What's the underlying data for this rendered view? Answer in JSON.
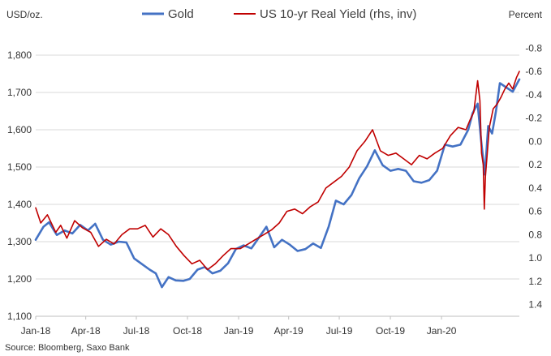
{
  "chart_data": {
    "type": "line",
    "title": "",
    "left_axis_label": "USD/oz.",
    "right_axis_label": "Percent",
    "source": "Source: Bloomberg, Saxo Bank",
    "left_ylim": [
      1100,
      1850
    ],
    "left_ticks": [
      "1,100",
      "1,200",
      "1,300",
      "1,400",
      "1,500",
      "1,600",
      "1,700",
      "1,800"
    ],
    "left_tick_values": [
      1100,
      1200,
      1300,
      1400,
      1500,
      1600,
      1700,
      1800
    ],
    "right_ylim_inverted": [
      1.5,
      -0.9
    ],
    "right_ticks": [
      "1.4",
      "1.2",
      "1.0",
      "0.8",
      "0.6",
      "0.4",
      "0.2",
      "0.0",
      "-0.2",
      "-0.4",
      "-0.6",
      "-0.8"
    ],
    "right_tick_values": [
      1.4,
      1.2,
      1.0,
      0.8,
      0.6,
      0.4,
      0.2,
      0.0,
      -0.2,
      -0.4,
      -0.6,
      -0.8
    ],
    "x_range": [
      "2018-01-01",
      "2020-05-20"
    ],
    "x_ticks": [
      "Jan-18",
      "Apr-18",
      "Jul-18",
      "Oct-18",
      "Jan-19",
      "Apr-19",
      "Jul-19",
      "Oct-19",
      "Jan-20"
    ],
    "x_tick_dates": [
      "2018-01-01",
      "2018-04-01",
      "2018-07-01",
      "2018-10-01",
      "2019-01-01",
      "2019-04-01",
      "2019-07-01",
      "2019-10-01",
      "2020-01-01"
    ],
    "legend_position": "top",
    "series": [
      {
        "name": "Gold",
        "axis": "left",
        "color": "#4472C4",
        "points": [
          [
            "2018-01-01",
            1305
          ],
          [
            "2018-01-15",
            1340
          ],
          [
            "2018-01-25",
            1352
          ],
          [
            "2018-02-08",
            1318
          ],
          [
            "2018-02-22",
            1330
          ],
          [
            "2018-03-08",
            1322
          ],
          [
            "2018-03-22",
            1345
          ],
          [
            "2018-04-05",
            1330
          ],
          [
            "2018-04-18",
            1348
          ],
          [
            "2018-05-02",
            1305
          ],
          [
            "2018-05-16",
            1292
          ],
          [
            "2018-05-30",
            1300
          ],
          [
            "2018-06-13",
            1298
          ],
          [
            "2018-06-27",
            1255
          ],
          [
            "2018-07-11",
            1240
          ],
          [
            "2018-07-25",
            1225
          ],
          [
            "2018-08-05",
            1215
          ],
          [
            "2018-08-16",
            1178
          ],
          [
            "2018-08-28",
            1205
          ],
          [
            "2018-09-10",
            1196
          ],
          [
            "2018-09-24",
            1195
          ],
          [
            "2018-10-05",
            1200
          ],
          [
            "2018-10-19",
            1225
          ],
          [
            "2018-11-01",
            1232
          ],
          [
            "2018-11-15",
            1215
          ],
          [
            "2018-11-29",
            1222
          ],
          [
            "2018-12-13",
            1242
          ],
          [
            "2018-12-27",
            1280
          ],
          [
            "2019-01-10",
            1290
          ],
          [
            "2019-01-24",
            1282
          ],
          [
            "2019-02-07",
            1312
          ],
          [
            "2019-02-20",
            1340
          ],
          [
            "2019-03-06",
            1285
          ],
          [
            "2019-03-20",
            1305
          ],
          [
            "2019-04-03",
            1292
          ],
          [
            "2019-04-17",
            1275
          ],
          [
            "2019-05-01",
            1280
          ],
          [
            "2019-05-15",
            1295
          ],
          [
            "2019-05-29",
            1283
          ],
          [
            "2019-06-12",
            1340
          ],
          [
            "2019-06-25",
            1410
          ],
          [
            "2019-07-09",
            1400
          ],
          [
            "2019-07-23",
            1425
          ],
          [
            "2019-08-06",
            1470
          ],
          [
            "2019-08-20",
            1502
          ],
          [
            "2019-09-03",
            1545
          ],
          [
            "2019-09-17",
            1505
          ],
          [
            "2019-10-01",
            1490
          ],
          [
            "2019-10-15",
            1495
          ],
          [
            "2019-10-29",
            1490
          ],
          [
            "2019-11-12",
            1462
          ],
          [
            "2019-11-26",
            1458
          ],
          [
            "2019-12-10",
            1465
          ],
          [
            "2019-12-24",
            1490
          ],
          [
            "2020-01-07",
            1560
          ],
          [
            "2020-01-21",
            1555
          ],
          [
            "2020-02-04",
            1560
          ],
          [
            "2020-02-18",
            1600
          ],
          [
            "2020-02-26",
            1645
          ],
          [
            "2020-03-06",
            1670
          ],
          [
            "2020-03-12",
            1575
          ],
          [
            "2020-03-19",
            1480
          ],
          [
            "2020-03-25",
            1610
          ],
          [
            "2020-04-01",
            1590
          ],
          [
            "2020-04-08",
            1650
          ],
          [
            "2020-04-15",
            1725
          ],
          [
            "2020-04-28",
            1712
          ],
          [
            "2020-05-08",
            1702
          ],
          [
            "2020-05-20",
            1735
          ]
        ]
      },
      {
        "name": "US 10-yr Real Yield (rhs, inv)",
        "axis": "right",
        "color": "#C00000",
        "points": [
          [
            "2018-01-01",
            0.57
          ],
          [
            "2018-01-10",
            0.7
          ],
          [
            "2018-01-22",
            0.63
          ],
          [
            "2018-02-06",
            0.78
          ],
          [
            "2018-02-15",
            0.72
          ],
          [
            "2018-02-26",
            0.83
          ],
          [
            "2018-03-12",
            0.68
          ],
          [
            "2018-03-26",
            0.74
          ],
          [
            "2018-04-10",
            0.78
          ],
          [
            "2018-04-24",
            0.9
          ],
          [
            "2018-05-08",
            0.84
          ],
          [
            "2018-05-22",
            0.88
          ],
          [
            "2018-06-05",
            0.8
          ],
          [
            "2018-06-19",
            0.75
          ],
          [
            "2018-07-03",
            0.75
          ],
          [
            "2018-07-17",
            0.72
          ],
          [
            "2018-07-31",
            0.82
          ],
          [
            "2018-08-14",
            0.75
          ],
          [
            "2018-08-28",
            0.8
          ],
          [
            "2018-09-11",
            0.9
          ],
          [
            "2018-09-25",
            0.98
          ],
          [
            "2018-10-09",
            1.05
          ],
          [
            "2018-10-23",
            1.02
          ],
          [
            "2018-11-06",
            1.1
          ],
          [
            "2018-11-20",
            1.05
          ],
          [
            "2018-12-04",
            0.98
          ],
          [
            "2018-12-18",
            0.92
          ],
          [
            "2019-01-04",
            0.92
          ],
          [
            "2019-01-18",
            0.88
          ],
          [
            "2019-02-01",
            0.84
          ],
          [
            "2019-02-15",
            0.8
          ],
          [
            "2019-03-01",
            0.76
          ],
          [
            "2019-03-15",
            0.7
          ],
          [
            "2019-03-29",
            0.6
          ],
          [
            "2019-04-12",
            0.58
          ],
          [
            "2019-04-26",
            0.62
          ],
          [
            "2019-05-10",
            0.56
          ],
          [
            "2019-05-24",
            0.52
          ],
          [
            "2019-06-07",
            0.4
          ],
          [
            "2019-06-21",
            0.35
          ],
          [
            "2019-07-05",
            0.3
          ],
          [
            "2019-07-19",
            0.22
          ],
          [
            "2019-08-02",
            0.08
          ],
          [
            "2019-08-16",
            0.0
          ],
          [
            "2019-08-30",
            -0.1
          ],
          [
            "2019-09-13",
            0.08
          ],
          [
            "2019-09-27",
            0.12
          ],
          [
            "2019-10-11",
            0.1
          ],
          [
            "2019-10-25",
            0.15
          ],
          [
            "2019-11-08",
            0.2
          ],
          [
            "2019-11-22",
            0.12
          ],
          [
            "2019-12-06",
            0.15
          ],
          [
            "2019-12-20",
            0.1
          ],
          [
            "2020-01-03",
            0.06
          ],
          [
            "2020-01-17",
            -0.05
          ],
          [
            "2020-01-31",
            -0.12
          ],
          [
            "2020-02-14",
            -0.1
          ],
          [
            "2020-02-21",
            -0.18
          ],
          [
            "2020-02-28",
            -0.25
          ],
          [
            "2020-03-06",
            -0.52
          ],
          [
            "2020-03-10",
            -0.35
          ],
          [
            "2020-03-13",
            0.1
          ],
          [
            "2020-03-16",
            0.2
          ],
          [
            "2020-03-18",
            0.58
          ],
          [
            "2020-03-20",
            0.3
          ],
          [
            "2020-03-27",
            -0.12
          ],
          [
            "2020-04-03",
            -0.28
          ],
          [
            "2020-04-10",
            -0.32
          ],
          [
            "2020-04-17",
            -0.38
          ],
          [
            "2020-04-24",
            -0.45
          ],
          [
            "2020-05-01",
            -0.5
          ],
          [
            "2020-05-08",
            -0.45
          ],
          [
            "2020-05-15",
            -0.55
          ],
          [
            "2020-05-20",
            -0.6
          ]
        ]
      }
    ]
  }
}
